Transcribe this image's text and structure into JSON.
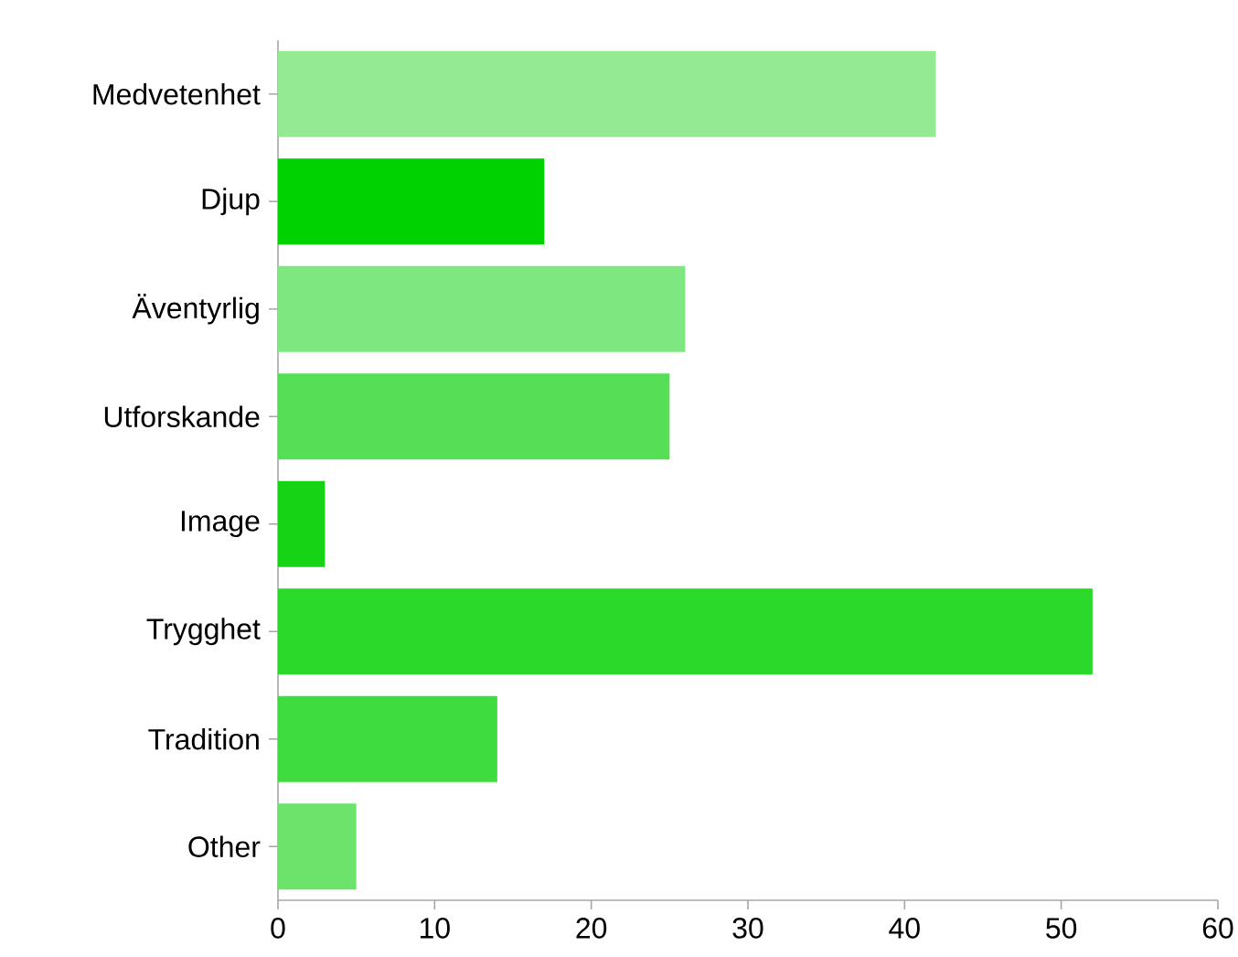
{
  "chart_data": {
    "type": "bar",
    "orientation": "horizontal",
    "categories": [
      "Medvetenhet",
      "Djup",
      "Äventyrlig",
      "Utforskande",
      "Image",
      "Trygghet",
      "Tradition",
      "Other"
    ],
    "values": [
      42,
      17,
      26,
      25,
      3,
      52,
      14,
      5
    ],
    "colors": [
      "#93ea93",
      "#00d100",
      "#7fe77f",
      "#56df56",
      "#16d316",
      "#2bd92b",
      "#3fdc3f",
      "#6ce46c"
    ],
    "xlim": [
      0,
      60
    ],
    "xticks": [
      0,
      10,
      20,
      30,
      40,
      50,
      60
    ]
  }
}
